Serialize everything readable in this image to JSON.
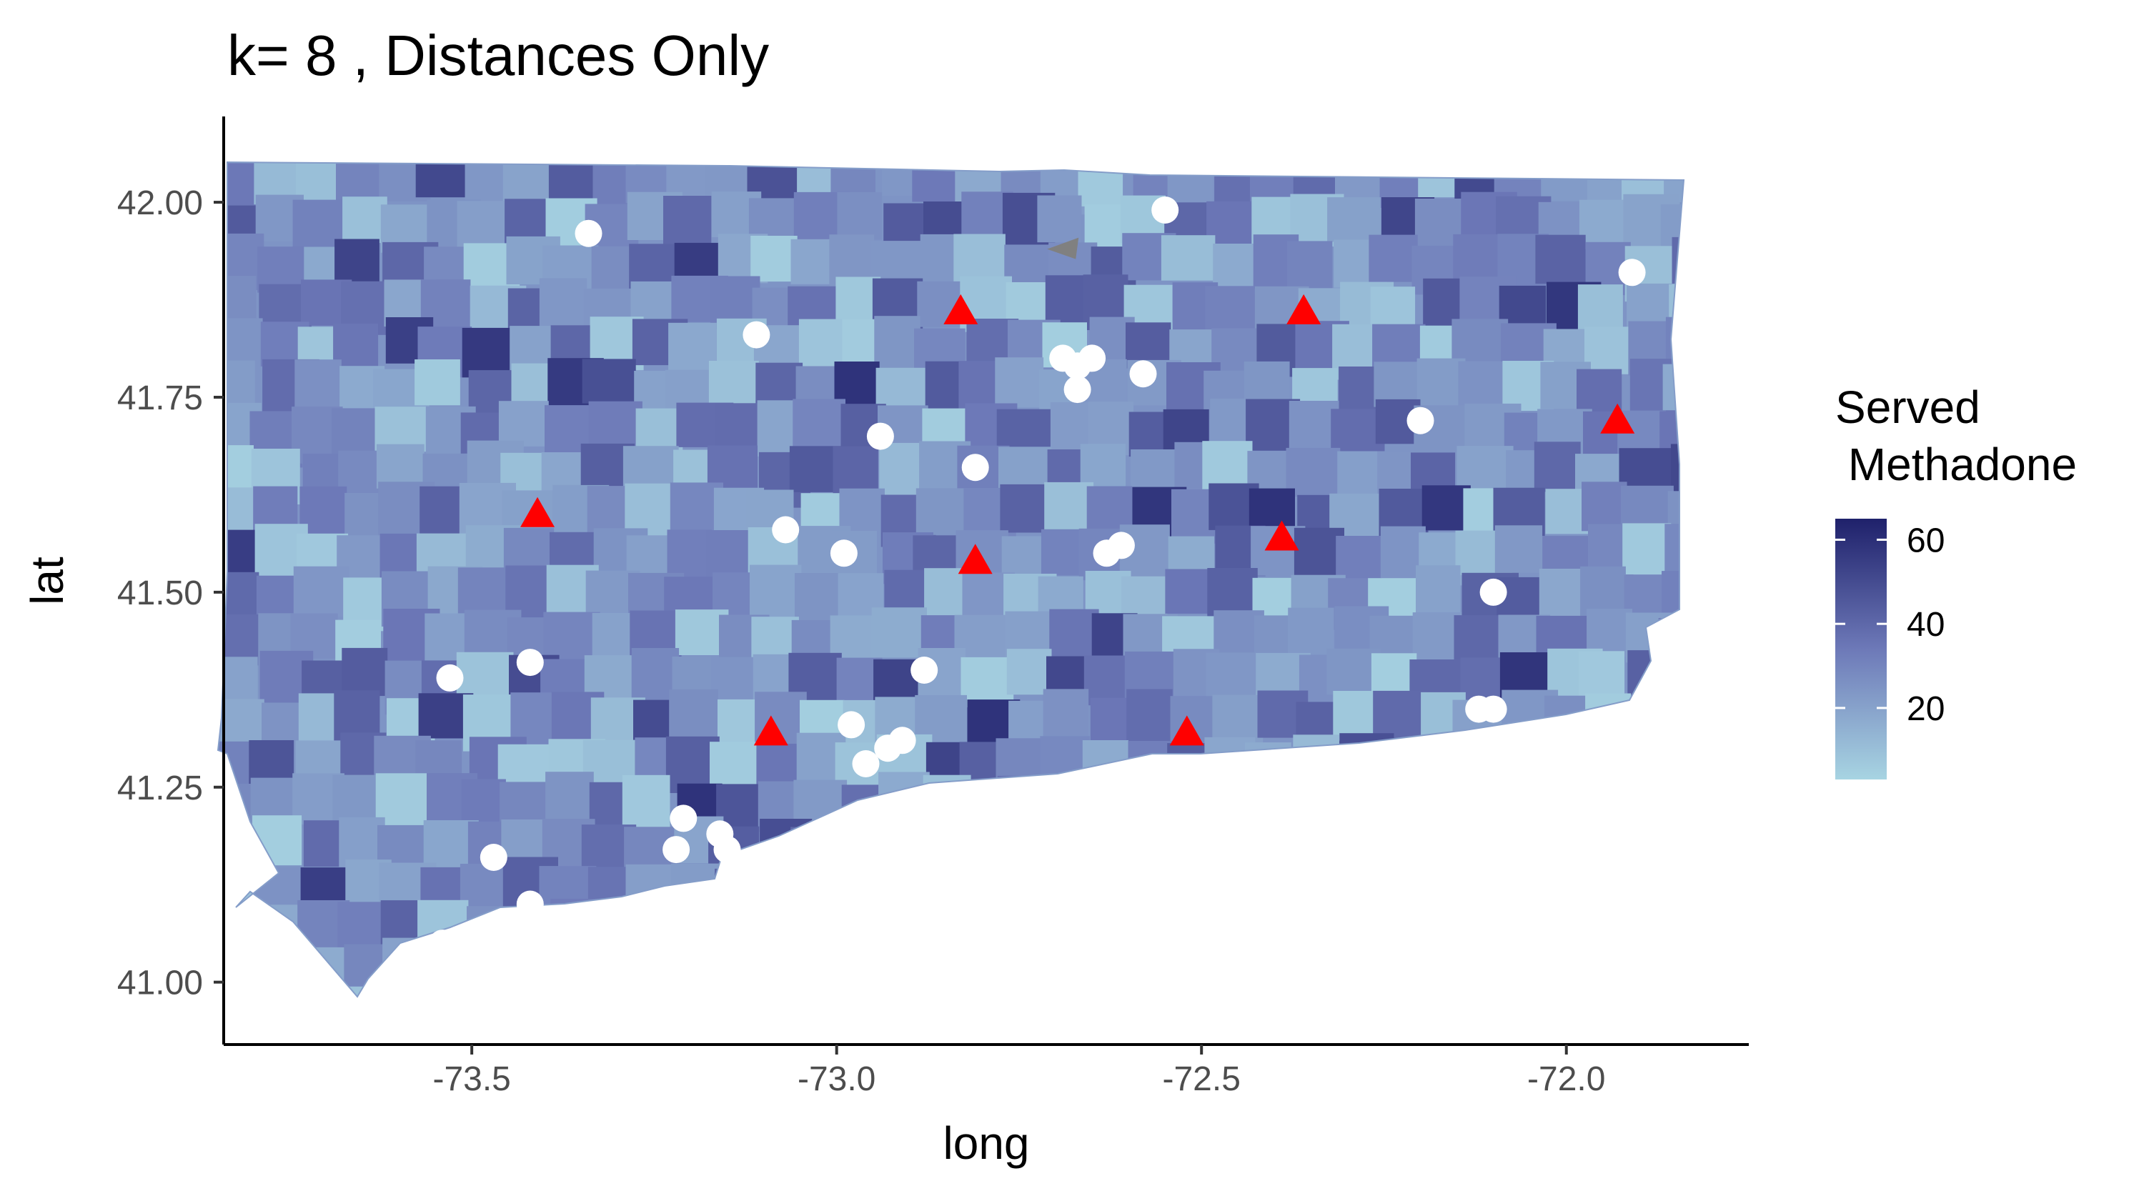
{
  "chart_data": {
    "type": "map",
    "title": "k= 8 , Distances Only",
    "xlabel": "long",
    "ylabel": "lat",
    "xlim": [
      -73.84,
      -71.75
    ],
    "ylim": [
      40.92,
      42.11
    ],
    "x_ticks": [
      -73.5,
      -73.0,
      -72.5,
      -72.0
    ],
    "x_tick_labels": [
      "-73.5",
      "-73.0",
      "-72.5",
      "-72.0"
    ],
    "y_ticks": [
      41.0,
      41.25,
      41.5,
      41.75,
      42.0
    ],
    "y_tick_labels": [
      "41.00",
      "41.25",
      "41.50",
      "41.75",
      "42.00"
    ],
    "legend": {
      "title_line1": "Served",
      "title_line2": " Methadone",
      "range": [
        3,
        65
      ],
      "ticks": [
        20,
        40,
        60
      ],
      "tick_labels": [
        "20",
        "40",
        "60"
      ],
      "color_low": "#a7d4e2",
      "color_mid": "#6d79b8",
      "color_high": "#1f216b",
      "placement": "right"
    },
    "colors": {
      "triangle": "#ff0000",
      "circle": "#ffffff",
      "grey_marker": "#808080",
      "axis": "#000000"
    },
    "triangles": [
      {
        "x": -72.83,
        "y": 41.86
      },
      {
        "x": -72.36,
        "y": 41.86
      },
      {
        "x": -71.93,
        "y": 41.72
      },
      {
        "x": -73.41,
        "y": 41.6
      },
      {
        "x": -72.39,
        "y": 41.57
      },
      {
        "x": -72.81,
        "y": 41.54
      },
      {
        "x": -73.09,
        "y": 41.32
      },
      {
        "x": -72.52,
        "y": 41.32
      }
    ],
    "circles": [
      {
        "x": -73.34,
        "y": 41.96
      },
      {
        "x": -72.55,
        "y": 41.99
      },
      {
        "x": -71.91,
        "y": 41.91
      },
      {
        "x": -73.11,
        "y": 41.83
      },
      {
        "x": -72.69,
        "y": 41.8
      },
      {
        "x": -72.67,
        "y": 41.79
      },
      {
        "x": -72.65,
        "y": 41.8
      },
      {
        "x": -72.67,
        "y": 41.76
      },
      {
        "x": -72.58,
        "y": 41.78
      },
      {
        "x": -72.2,
        "y": 41.72
      },
      {
        "x": -72.94,
        "y": 41.7
      },
      {
        "x": -72.81,
        "y": 41.66
      },
      {
        "x": -73.07,
        "y": 41.58
      },
      {
        "x": -72.99,
        "y": 41.55
      },
      {
        "x": -72.63,
        "y": 41.55
      },
      {
        "x": -72.61,
        "y": 41.56
      },
      {
        "x": -72.1,
        "y": 41.5
      },
      {
        "x": -73.42,
        "y": 41.41
      },
      {
        "x": -73.53,
        "y": 41.39
      },
      {
        "x": -72.88,
        "y": 41.4
      },
      {
        "x": -72.98,
        "y": 41.33
      },
      {
        "x": -72.91,
        "y": 41.31
      },
      {
        "x": -72.93,
        "y": 41.3
      },
      {
        "x": -72.96,
        "y": 41.28
      },
      {
        "x": -72.12,
        "y": 41.35
      },
      {
        "x": -72.1,
        "y": 41.35
      },
      {
        "x": -73.21,
        "y": 41.21
      },
      {
        "x": -73.16,
        "y": 41.19
      },
      {
        "x": -73.15,
        "y": 41.17
      },
      {
        "x": -73.22,
        "y": 41.17
      },
      {
        "x": -73.47,
        "y": 41.16
      },
      {
        "x": -73.42,
        "y": 41.1
      },
      {
        "x": -73.54,
        "y": 41.05
      }
    ],
    "grey_marker": {
      "x": -72.69,
      "y": 41.94
    }
  }
}
